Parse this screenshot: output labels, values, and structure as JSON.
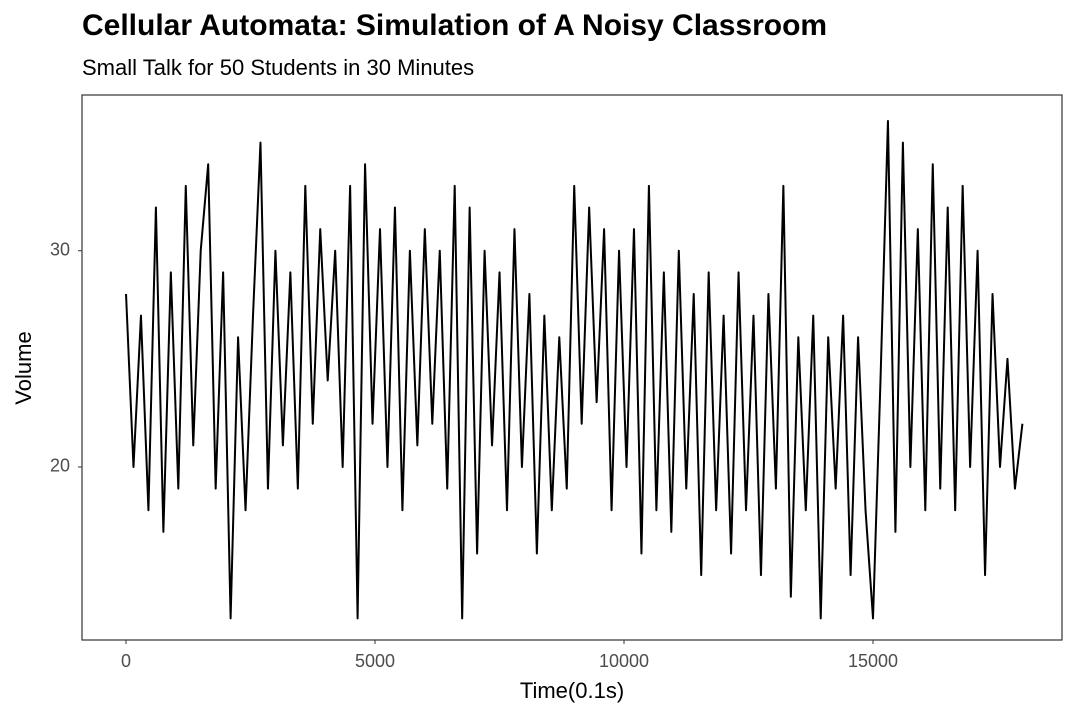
{
  "chart_data": {
    "type": "line",
    "title": "Cellular Automata: Simulation of A Noisy Classroom",
    "subtitle": "Small Talk for 50 Students in 30 Minutes",
    "x_label": "Time(0.1s)",
    "y_label": "Volume",
    "x": [
      0,
      150,
      300,
      450,
      600,
      750,
      900,
      1050,
      1200,
      1350,
      1500,
      1650,
      1800,
      1950,
      2100,
      2250,
      2400,
      2550,
      2700,
      2850,
      3000,
      3150,
      3300,
      3450,
      3600,
      3750,
      3900,
      4050,
      4200,
      4350,
      4500,
      4650,
      4800,
      4950,
      5100,
      5250,
      5400,
      5550,
      5700,
      5850,
      6000,
      6150,
      6300,
      6450,
      6600,
      6750,
      6900,
      7050,
      7200,
      7350,
      7500,
      7650,
      7800,
      7950,
      8100,
      8250,
      8400,
      8550,
      8700,
      8850,
      9000,
      9150,
      9300,
      9450,
      9600,
      9750,
      9900,
      10050,
      10200,
      10350,
      10500,
      10650,
      10800,
      10950,
      11100,
      11250,
      11400,
      11550,
      11700,
      11850,
      12000,
      12150,
      12300,
      12450,
      12600,
      12750,
      12900,
      13050,
      13200,
      13350,
      13500,
      13650,
      13800,
      13950,
      14100,
      14250,
      14400,
      14550,
      14700,
      14850,
      15000,
      15150,
      15300,
      15450,
      15600,
      15750,
      15900,
      16050,
      16200,
      16350,
      16500,
      16650,
      16800,
      16950,
      17100,
      17250,
      17400,
      17550,
      17700,
      17850,
      18000
    ],
    "values": [
      28,
      20,
      27,
      18,
      32,
      17,
      29,
      19,
      33,
      21,
      30,
      34,
      19,
      29,
      13,
      26,
      18,
      27,
      35,
      19,
      30,
      21,
      29,
      19,
      33,
      22,
      31,
      24,
      30,
      20,
      33,
      13,
      34,
      22,
      31,
      20,
      32,
      18,
      30,
      21,
      31,
      22,
      30,
      19,
      33,
      13,
      32,
      16,
      30,
      21,
      29,
      18,
      31,
      20,
      28,
      16,
      27,
      18,
      26,
      19,
      33,
      22,
      32,
      23,
      31,
      18,
      30,
      20,
      31,
      16,
      33,
      18,
      29,
      17,
      30,
      19,
      28,
      15,
      29,
      18,
      27,
      16,
      29,
      18,
      27,
      15,
      28,
      19,
      33,
      14,
      26,
      18,
      27,
      13,
      26,
      19,
      27,
      15,
      26,
      18,
      13,
      24,
      36,
      17,
      35,
      20,
      31,
      18,
      34,
      19,
      32,
      18,
      33,
      20,
      30,
      15,
      28,
      20,
      25,
      19,
      22
    ],
    "color": "#000000",
    "xlim": [
      -884,
      18795
    ],
    "ylim": [
      12,
      37.2
    ],
    "xticks": [
      0,
      5000,
      10000,
      15000
    ],
    "yticks": [
      20,
      30
    ],
    "grid": false
  }
}
